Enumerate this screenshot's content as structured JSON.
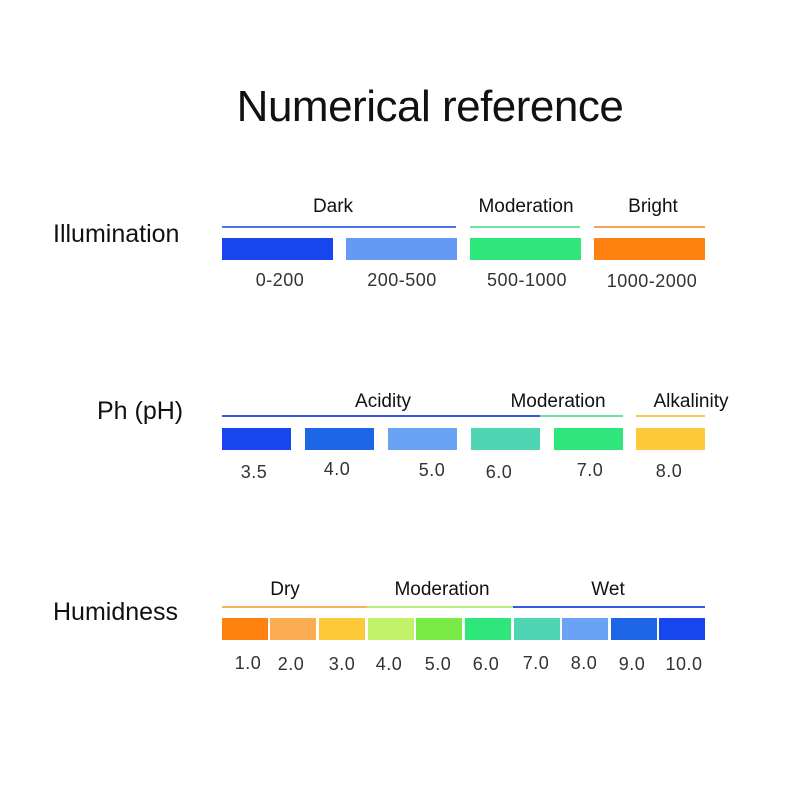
{
  "title": "Numerical reference",
  "illumination": {
    "label": "Illumination",
    "categories": [
      {
        "name": "Dark",
        "color": "#4a73e8"
      },
      {
        "name": "Moderation",
        "color": "#6fe3a2"
      },
      {
        "name": "Bright",
        "color": "#f5a15a"
      }
    ],
    "blocks": [
      {
        "value": "0-200",
        "color": "#1746ee"
      },
      {
        "value": "200-500",
        "color": "#6699f5"
      },
      {
        "value": "500-1000",
        "color": "#2ee67a"
      },
      {
        "value": "1000-2000",
        "color": "#ff8211"
      }
    ]
  },
  "ph": {
    "label": "Ph (pH)",
    "categories": [
      {
        "name": "Acidity",
        "color": "#3459e6"
      },
      {
        "name": "Moderation",
        "color": "#6fe3a2"
      },
      {
        "name": "Alkalinity",
        "color": "#fbc94a"
      }
    ],
    "blocks": [
      {
        "value": "3.5",
        "color": "#1746ee"
      },
      {
        "value": "4.0",
        "color": "#1e66e8"
      },
      {
        "value": "5.0",
        "color": "#6aa2f5"
      },
      {
        "value": "6.0",
        "color": "#4fd4b4"
      },
      {
        "value": "7.0",
        "color": "#2ee67a"
      },
      {
        "value": "8.0",
        "color": "#fdc93a"
      }
    ]
  },
  "humidness": {
    "label": "Humidness",
    "categories": [
      {
        "name": "Dry",
        "color": "#f8b25c"
      },
      {
        "name": "Moderation",
        "color": "#b8f07a"
      },
      {
        "name": "Wet",
        "color": "#3459e6"
      }
    ],
    "blocks": [
      {
        "value": "1.0",
        "color": "#ff8211"
      },
      {
        "value": "2.0",
        "color": "#fbac50"
      },
      {
        "value": "3.0",
        "color": "#fdc93a"
      },
      {
        "value": "4.0",
        "color": "#c2f26a"
      },
      {
        "value": "5.0",
        "color": "#7aea47"
      },
      {
        "value": "6.0",
        "color": "#2ee67a"
      },
      {
        "value": "7.0",
        "color": "#4fd4b4"
      },
      {
        "value": "8.0",
        "color": "#6aa2f5"
      },
      {
        "value": "9.0",
        "color": "#1e66e8"
      },
      {
        "value": "10.0",
        "color": "#1746ee"
      }
    ]
  }
}
